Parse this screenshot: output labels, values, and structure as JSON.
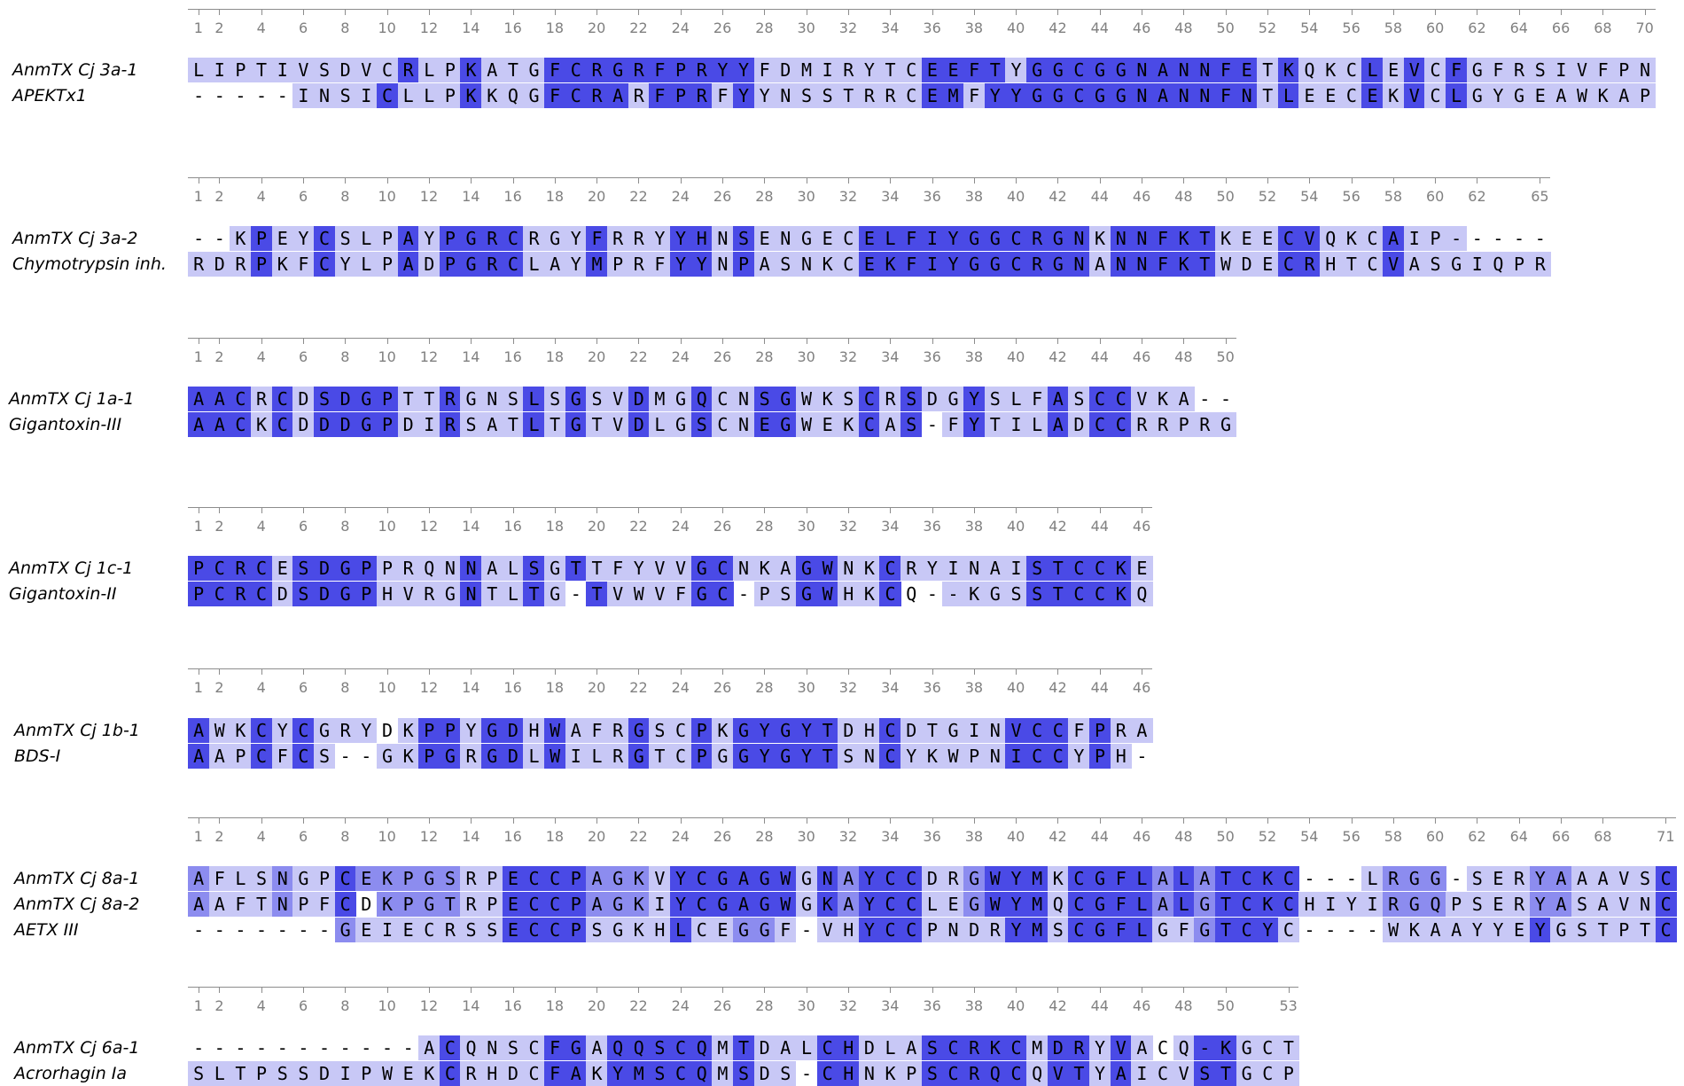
{
  "colors": {
    "conservation_0": "#ffffff",
    "conservation_1": "#c8c8f6",
    "conservation_2": "#8c8cef",
    "conservation_3": "#4a4ae6",
    "ruler": "#8c8c8c",
    "tick_label": "#808080"
  },
  "blocks": [
    {
      "ticks": [
        "1",
        "2",
        "4",
        "6",
        "8",
        "10",
        "12",
        "14",
        "16",
        "18",
        "20",
        "22",
        "24",
        "26",
        "28",
        "30",
        "32",
        "34",
        "36",
        "38",
        "40",
        "42",
        "44",
        "46",
        "48",
        "50",
        "52",
        "54",
        "56",
        "58",
        "60",
        "62",
        "64",
        "66",
        "68",
        "70"
      ],
      "tick_positions": [
        1,
        2,
        4,
        6,
        8,
        10,
        12,
        14,
        16,
        18,
        20,
        22,
        24,
        26,
        28,
        30,
        32,
        34,
        36,
        38,
        40,
        42,
        44,
        46,
        48,
        50,
        52,
        54,
        56,
        58,
        60,
        62,
        64,
        66,
        68,
        70
      ],
      "length": 70,
      "sequences": [
        {
          "name": "AnmTX Cj 3a-1",
          "residues": "LIPTIVSDVCRLPKATGFCRGRFPRYYFDMIRYTCEEFTYGGCGGNANNFETKQKCLEVCFGFRSIVFPN",
          "shade": "1111111111311311133333333331111111133331333333333331311131313111111111"
        },
        {
          "name": "APEKTx1",
          "residues": "-----INSICLLPKKQGFCRARFPRFYYNSSTRRCEMFYYGGCGGNANNFNTLEECEKVCLGYGEAWKAP",
          "shade": "0000011113111311133331333131111111133133333333333331311131313111111111"
        }
      ]
    },
    {
      "ticks": [
        "1",
        "2",
        "4",
        "6",
        "8",
        "10",
        "12",
        "14",
        "16",
        "18",
        "20",
        "22",
        "24",
        "26",
        "28",
        "30",
        "32",
        "34",
        "36",
        "38",
        "40",
        "42",
        "44",
        "46",
        "48",
        "50",
        "52",
        "54",
        "56",
        "58",
        "60",
        "62",
        "65"
      ],
      "tick_positions": [
        1,
        2,
        4,
        6,
        8,
        10,
        12,
        14,
        16,
        18,
        20,
        22,
        24,
        26,
        28,
        30,
        32,
        34,
        36,
        38,
        40,
        42,
        44,
        46,
        48,
        50,
        52,
        54,
        56,
        58,
        60,
        62,
        65
      ],
      "length": 65,
      "sequences": [
        {
          "name": "AnmTX Cj 3a-2",
          "residues": "--KPEYCSLPAYPGRCRGYFRRYYHNSENGECELFIYGGCRGNKNNFKTKEECVQKCAIP-----",
          "shade": "00131131113133331113111331311111333333333331333331113311131110000"
        },
        {
          "name": "Chymotrypsin inh.",
          "residues": "RDRPKFCYLPADPGRCLAYMPRFYYNPASNKCEKFIYGGCRGNANNFKTWDECRHTCVASGIQPR",
          "shade": "11131131113133331113111331311111333333333331333331113311131111111"
        }
      ]
    },
    {
      "ticks": [
        "1",
        "2",
        "4",
        "6",
        "8",
        "10",
        "12",
        "14",
        "16",
        "18",
        "20",
        "22",
        "24",
        "26",
        "28",
        "30",
        "32",
        "34",
        "36",
        "38",
        "40",
        "42",
        "44",
        "46",
        "48",
        "50"
      ],
      "tick_positions": [
        1,
        2,
        4,
        6,
        8,
        10,
        12,
        14,
        16,
        18,
        20,
        22,
        24,
        26,
        28,
        30,
        32,
        34,
        36,
        38,
        40,
        42,
        44,
        46,
        48,
        50
      ],
      "length": 50,
      "sequences": [
        {
          "name": "AnmTX Cj 1a-1",
          "residues": "AACRCDSDGPTTRGNSLSGSVDMGQCNSGWKSCRSDGYSLFASCCVKA--",
          "shade": "33313133331131113131131131133111313113111313311100"
        },
        {
          "name": "Gigantoxin-III",
          "residues": "AACKCDDDGPDIRSATLTGTVDLGSCNEGWEKCAS-FYTILADCCRRPRG",
          "shade": "33313133331131113131131131133111313013111313311111"
        }
      ]
    },
    {
      "ticks": [
        "1",
        "2",
        "4",
        "6",
        "8",
        "10",
        "12",
        "14",
        "16",
        "18",
        "20",
        "22",
        "24",
        "26",
        "28",
        "30",
        "32",
        "34",
        "36",
        "38",
        "40",
        "42",
        "44",
        "46"
      ],
      "tick_positions": [
        1,
        2,
        4,
        6,
        8,
        10,
        12,
        14,
        16,
        18,
        20,
        22,
        24,
        26,
        28,
        30,
        32,
        34,
        36,
        38,
        40,
        42,
        44,
        46
      ],
      "length": 46,
      "sequences": [
        {
          "name": "AnmTX Cj 1c-1",
          "residues": "PCRCESDGPPRQNNALSGTTFYVVGCNKAGWNKCRYINAISTCCKE",
          "shade": "3333133331111311313111113311133113111111333331"
        },
        {
          "name": "Gigantoxin-II",
          "residues": "PCRCDSDGPHVRGNTLTG-TVWVFGC-PSGWHKCQ--KGSSTCCKQ",
          "shade": "3333133331111311310311113301133113001111333331"
        }
      ]
    },
    {
      "ticks": [
        "1",
        "2",
        "4",
        "6",
        "8",
        "10",
        "12",
        "14",
        "16",
        "18",
        "20",
        "22",
        "24",
        "26",
        "28",
        "30",
        "32",
        "34",
        "36",
        "38",
        "40",
        "42",
        "44",
        "46"
      ],
      "tick_positions": [
        1,
        2,
        4,
        6,
        8,
        10,
        12,
        14,
        16,
        18,
        20,
        22,
        24,
        26,
        28,
        30,
        32,
        34,
        36,
        38,
        40,
        42,
        44,
        46
      ],
      "length": 46,
      "sequences": [
        {
          "name": "AnmTX Cj 1b-1",
          "residues": "AWKCYCGRYDKPPYGDHWAFRGSCPKGYGYTDHCDTGINVCCFPRA",
          "shade": "3113131110133133131113113133333113111113331311"
        },
        {
          "name": "BDS-I",
          "residues": "AAPCFCS--GKPGRGDLWILRGTCPGGYGYTSNCYKWPNICCYPH-",
          "shade": "3113131001133133131113113133333113111113331310"
        }
      ]
    },
    {
      "ticks": [
        "1",
        "2",
        "4",
        "6",
        "8",
        "10",
        "12",
        "14",
        "16",
        "18",
        "20",
        "22",
        "24",
        "26",
        "28",
        "30",
        "32",
        "34",
        "36",
        "38",
        "40",
        "42",
        "44",
        "46",
        "48",
        "50",
        "52",
        "54",
        "56",
        "58",
        "60",
        "62",
        "64",
        "66",
        "68",
        "71"
      ],
      "tick_positions": [
        1,
        2,
        4,
        6,
        8,
        10,
        12,
        14,
        16,
        18,
        20,
        22,
        24,
        26,
        28,
        30,
        32,
        34,
        36,
        38,
        40,
        42,
        44,
        46,
        48,
        50,
        52,
        54,
        56,
        58,
        60,
        62,
        64,
        66,
        68,
        71
      ],
      "length": 71,
      "sequences": [
        {
          "name": "AnmTX Cj 8a-1",
          "residues": "AFLSNGPCEKPGSRPECCPAGKVYCGAGWGNAYCCDRGWYMKCGFLALATCKC---LRGG-SERYAAAVSC",
          "shade": "21112113222221133332221333333132333112333133332323333000122201112211113"
        },
        {
          "name": "AnmTX Cj 8a-2",
          "residues": "AAFTNPFCDKPGTRPECCPAGKIYCGAGWGKAYCCLEGWYMQCGFLALGTCKCHIYIRGQPSERYASAVNC",
          "shade": "21112113022221133332221333333132333112333133332323333111122211112211113"
        },
        {
          "name": "AETX III",
          "residues": "-------GEIECRSSECCPSGKHLCEGGF-VHYCCPNDRYMSCGFLGFGTCYC----WKAAYYEYGSTPTC",
          "shade": "00000002111111133331111311221011333111133133331123331000011111113111113"
        }
      ]
    },
    {
      "ticks": [
        "1",
        "2",
        "4",
        "6",
        "8",
        "10",
        "12",
        "14",
        "16",
        "18",
        "20",
        "22",
        "24",
        "26",
        "28",
        "30",
        "32",
        "34",
        "36",
        "38",
        "40",
        "42",
        "44",
        "46",
        "48",
        "50",
        "53"
      ],
      "tick_positions": [
        1,
        2,
        4,
        6,
        8,
        10,
        12,
        14,
        16,
        18,
        20,
        22,
        24,
        26,
        28,
        30,
        32,
        34,
        36,
        38,
        40,
        42,
        44,
        46,
        48,
        50,
        53
      ],
      "length": 53,
      "sequences": [
        {
          "name": "AnmTX Cj 6a-1",
          "residues": "-----------ACQNSCFGAQQSCQMTDALCHDLASCRKCMDRYVACQ-KGCT",
          "shade": "00000000000131111331333331311133111333331331310133111"
        },
        {
          "name": "Acrorhagin Ia",
          "residues": "SLTPSSDIPWEKCRHDCFAKYMSCQMSDS-CHNKPSCRQCQVTYAICVSTGCP",
          "shade": "11111111111131111331333331311033111333331331311133111"
        }
      ]
    }
  ]
}
